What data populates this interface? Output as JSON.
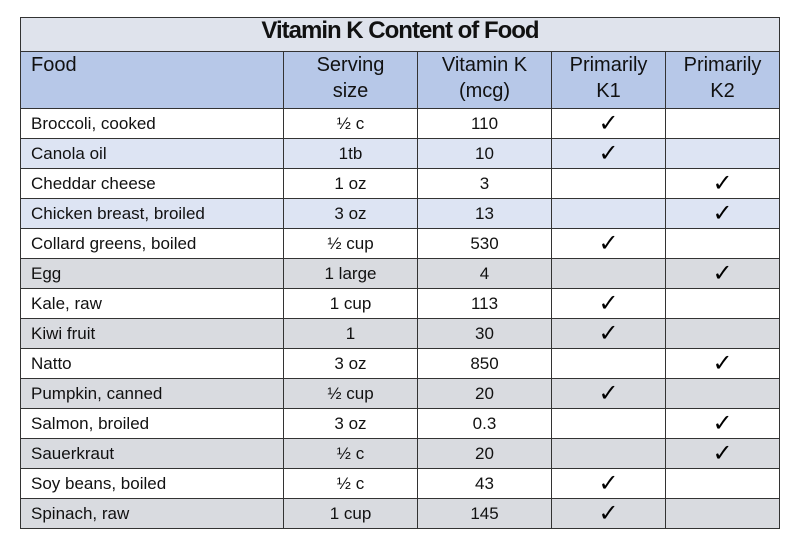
{
  "title": "Vitamin K Content of Food",
  "headers": {
    "food": "Food",
    "serving_line1": "Serving",
    "serving_line2": "size",
    "vitk_line1": "Vitamin K",
    "vitk_line2": "(mcg)",
    "k1_line1": "Primarily",
    "k1_line2": "K1",
    "k2_line1": "Primarily",
    "k2_line2": "K2"
  },
  "check_glyph": "✓",
  "rows": [
    {
      "food": "Broccoli, cooked",
      "serving": "½ c",
      "vitamin_k": "110",
      "k1": "✓",
      "k2": ""
    },
    {
      "food": "Canola oil",
      "serving": "1tb",
      "vitamin_k": "10",
      "k1": "✓",
      "k2": ""
    },
    {
      "food": "Cheddar cheese",
      "serving": "1 oz",
      "vitamin_k": "3",
      "k1": "",
      "k2": "✓"
    },
    {
      "food": "Chicken breast, broiled",
      "serving": "3 oz",
      "vitamin_k": "13",
      "k1": "",
      "k2": "✓"
    },
    {
      "food": "Collard greens, boiled",
      "serving": "½ cup",
      "vitamin_k": "530",
      "k1": "✓",
      "k2": ""
    },
    {
      "food": "Egg",
      "serving": "1 large",
      "vitamin_k": "4",
      "k1": "",
      "k2": "✓"
    },
    {
      "food": "Kale, raw",
      "serving": "1 cup",
      "vitamin_k": "113",
      "k1": "✓",
      "k2": ""
    },
    {
      "food": "Kiwi fruit",
      "serving": "1",
      "vitamin_k": "30",
      "k1": "✓",
      "k2": ""
    },
    {
      "food": "Natto",
      "serving": "3 oz",
      "vitamin_k": "850",
      "k1": "",
      "k2": "✓"
    },
    {
      "food": "Pumpkin, canned",
      "serving": "½ cup",
      "vitamin_k": "20",
      "k1": "✓",
      "k2": ""
    },
    {
      "food": "Salmon, broiled",
      "serving": "3 oz",
      "vitamin_k": "0.3",
      "k1": "",
      "k2": "✓"
    },
    {
      "food": "Sauerkraut",
      "serving": "½ c",
      "vitamin_k": "20",
      "k1": "",
      "k2": "✓"
    },
    {
      "food": "Soy beans, boiled",
      "serving": "½ c",
      "vitamin_k": "43",
      "k1": "✓",
      "k2": ""
    },
    {
      "food": "Spinach, raw",
      "serving": "1 cup",
      "vitamin_k": "145",
      "k1": "✓",
      "k2": ""
    }
  ],
  "colors": {
    "header_bg": "#b7c8e8",
    "title_bg": "#dfe3ec",
    "stripe_blue": "#dde4f3",
    "stripe_gray": "#d9dbe0"
  }
}
